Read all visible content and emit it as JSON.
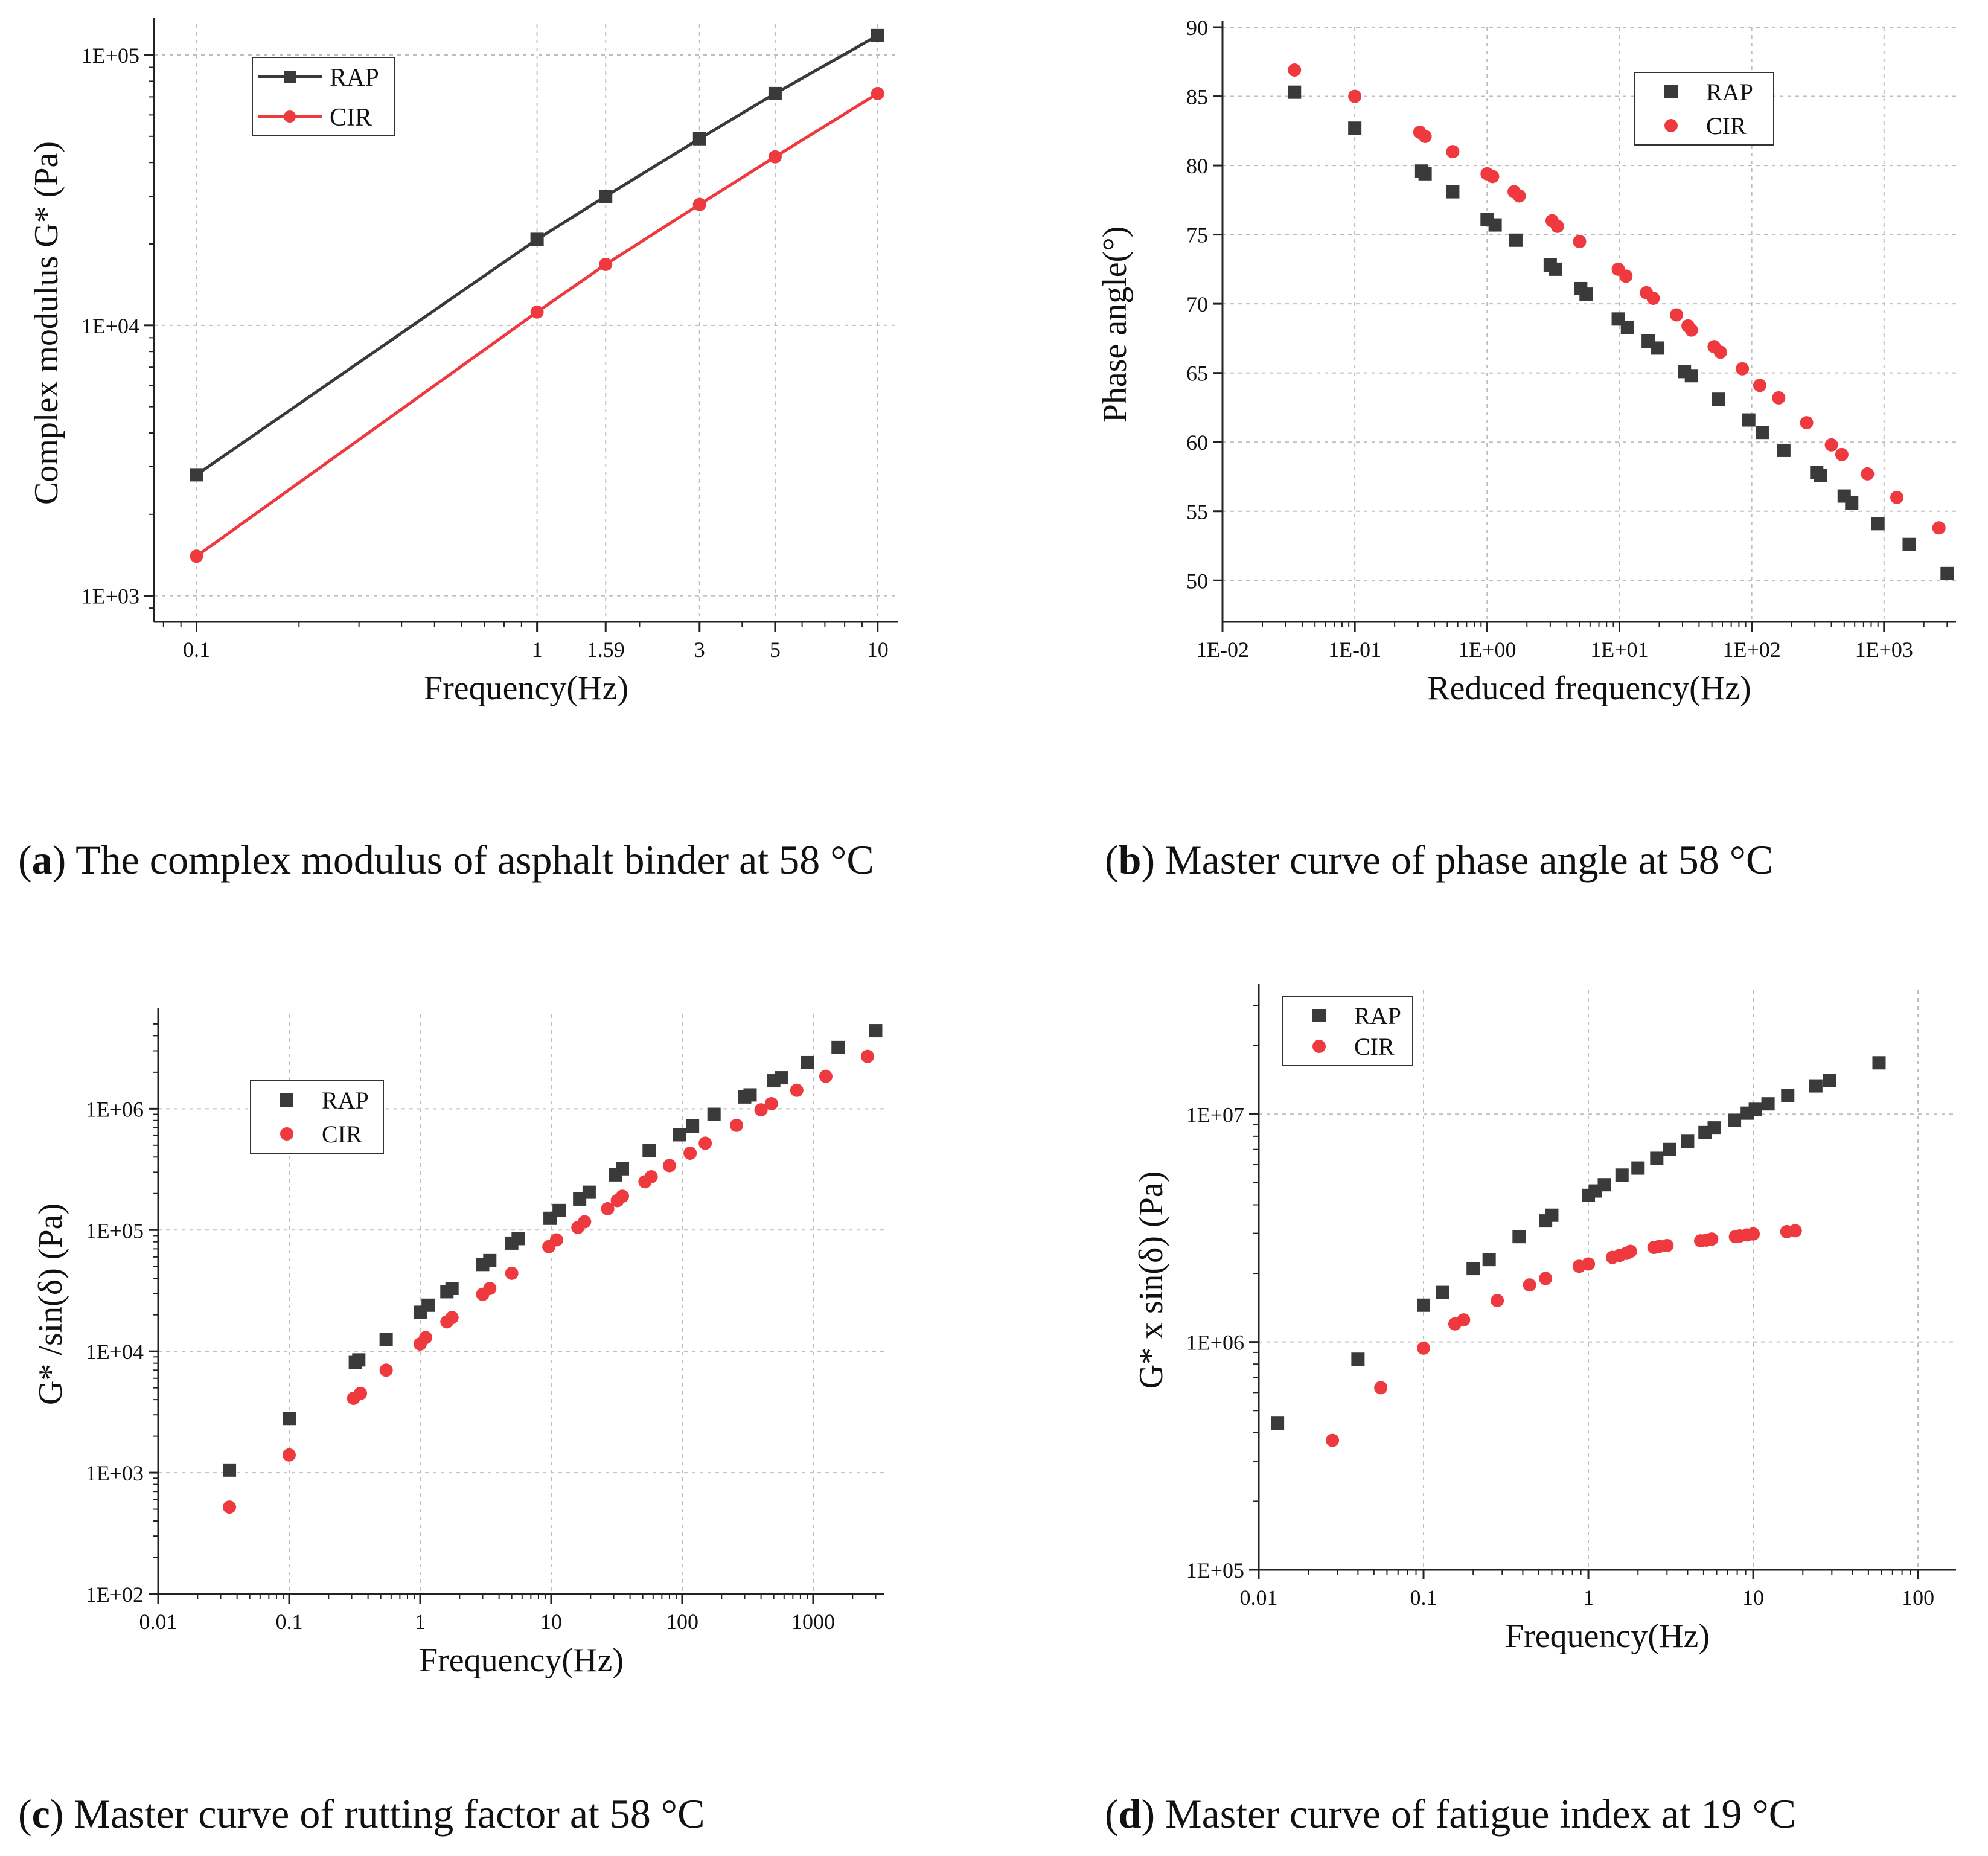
{
  "captions": [
    {
      "letter": "a",
      "text": ") The complex modulus of asphalt binder at 58 °C"
    },
    {
      "letter": "b",
      "text": ") Master curve of phase angle at 58 °C"
    },
    {
      "letter": "c",
      "text": ") Master curve of rutting factor at 58 °C"
    },
    {
      "letter": "d",
      "text": ") Master curve of fatigue index at 19 °C"
    }
  ],
  "colors": {
    "rap": "#3a3a3a",
    "cir": "#ee3a3f",
    "grid": "#bdbdbd",
    "axis": "#222222"
  },
  "chart_data": [
    {
      "id": "a",
      "type": "line",
      "xscale": "log",
      "yscale": "log",
      "xlim": [
        0.075,
        11.5
      ],
      "ylim": [
        800,
        130000
      ],
      "xticks": [
        0.1,
        1,
        1.59,
        3,
        5,
        10
      ],
      "xtick_labels": [
        "0.1",
        "1",
        "1.59",
        "3",
        "5",
        "10"
      ],
      "yticks": [
        1000,
        10000,
        100000
      ],
      "ytick_labels": [
        "1E+03",
        "1E+04",
        "1E+05"
      ],
      "xlabel": "Frequency(Hz)",
      "ylabel": "Complex modulus G* (Pa)",
      "legend_position": "top-left",
      "series": [
        {
          "name": "RAP",
          "marker": "square",
          "color": "#3a3a3a",
          "line": true,
          "x": [
            0.1,
            1,
            1.59,
            3,
            5,
            10
          ],
          "y": [
            2800,
            20800,
            30000,
            49000,
            72000,
            118000
          ]
        },
        {
          "name": "CIR",
          "marker": "circle",
          "color": "#ee3a3f",
          "line": true,
          "x": [
            0.1,
            1,
            1.59,
            3,
            5,
            10
          ],
          "y": [
            1400,
            11200,
            16800,
            28000,
            42000,
            72000
          ]
        }
      ]
    },
    {
      "id": "b",
      "type": "scatter",
      "xscale": "log",
      "yscale": "linear",
      "xlim": [
        0.01,
        3500
      ],
      "ylim": [
        47,
        90
      ],
      "xticks": [
        0.01,
        0.1,
        1,
        10,
        100,
        1000
      ],
      "xtick_labels": [
        "1E-02",
        "1E-01",
        "1E+00",
        "1E+01",
        "1E+02",
        "1E+03"
      ],
      "yticks": [
        50,
        55,
        60,
        65,
        70,
        75,
        80,
        85,
        90
      ],
      "ytick_labels": [
        "50",
        "55",
        "60",
        "65",
        "70",
        "75",
        "80",
        "85",
        "90"
      ],
      "xlabel": "Reduced frequency(Hz)",
      "ylabel": "Phase angle(°)",
      "legend_position": "top-right",
      "series": [
        {
          "name": "RAP",
          "marker": "square",
          "color": "#3a3a3a",
          "line": false,
          "x": [
            0.035,
            0.1,
            0.32,
            0.34,
            0.55,
            1.0,
            1.15,
            1.65,
            3.0,
            3.3,
            5.1,
            5.6,
            9.8,
            11.5,
            16.5,
            19.5,
            31,
            35,
            56,
            95,
            120,
            175,
            310,
            330,
            500,
            570,
            900,
            1550,
            3000
          ],
          "y": [
            85.3,
            82.7,
            79.6,
            79.4,
            78.1,
            76.1,
            75.7,
            74.6,
            72.8,
            72.5,
            71.1,
            70.7,
            68.9,
            68.3,
            67.3,
            66.8,
            65.1,
            64.8,
            63.1,
            61.6,
            60.7,
            59.4,
            57.8,
            57.6,
            56.1,
            55.6,
            54.1,
            52.6,
            50.5
          ]
        },
        {
          "name": "CIR",
          "marker": "circle",
          "color": "#ee3a3f",
          "line": false,
          "x": [
            0.035,
            0.1,
            0.31,
            0.34,
            0.55,
            1.0,
            1.1,
            1.6,
            1.75,
            3.1,
            3.4,
            5.0,
            9.8,
            11.2,
            16,
            18,
            27,
            33,
            35,
            52,
            58,
            85,
            115,
            160,
            260,
            400,
            480,
            750,
            1250,
            2600
          ],
          "y": [
            86.9,
            85.0,
            82.4,
            82.1,
            81.0,
            79.4,
            79.2,
            78.1,
            77.8,
            76.0,
            75.6,
            74.5,
            72.5,
            72.0,
            70.8,
            70.4,
            69.2,
            68.4,
            68.1,
            66.9,
            66.5,
            65.3,
            64.1,
            63.2,
            61.4,
            59.8,
            59.1,
            57.7,
            56.0,
            53.8
          ]
        }
      ]
    },
    {
      "id": "c",
      "type": "scatter",
      "xscale": "log",
      "yscale": "log",
      "xlim": [
        0.01,
        3500
      ],
      "ylim": [
        100,
        6000000
      ],
      "xticks": [
        0.01,
        0.1,
        1,
        10,
        100,
        1000
      ],
      "xtick_labels": [
        "0.01",
        "0.1",
        "1",
        "10",
        "100",
        "1000"
      ],
      "yticks": [
        100,
        1000,
        10000,
        100000,
        1000000
      ],
      "ytick_labels": [
        "1E+02",
        "1E+03",
        "1E+04",
        "1E+05",
        "1E+06"
      ],
      "xlabel": "Frequency(Hz)",
      "ylabel": "G* /sin(δ) (Pa)",
      "legend_position": "upper-left",
      "series": [
        {
          "name": "RAP",
          "marker": "square",
          "color": "#3a3a3a",
          "line": false,
          "x": [
            0.035,
            0.1,
            0.32,
            0.34,
            0.55,
            1.0,
            1.15,
            1.6,
            1.75,
            3.0,
            3.4,
            5.0,
            5.6,
            9.8,
            11.5,
            16.5,
            19.5,
            31,
            35,
            56,
            95,
            120,
            175,
            300,
            330,
            500,
            570,
            900,
            1550,
            3000
          ],
          "y": [
            1050,
            2800,
            8100,
            8500,
            12500,
            21000,
            24000,
            31000,
            33000,
            52000,
            56000,
            78000,
            85000,
            125000,
            145000,
            180000,
            205000,
            285000,
            320000,
            450000,
            610000,
            720000,
            900000,
            1250000,
            1300000,
            1700000,
            1800000,
            2400000,
            3200000,
            4400000
          ]
        },
        {
          "name": "CIR",
          "marker": "circle",
          "color": "#ee3a3f",
          "line": false,
          "x": [
            0.035,
            0.1,
            0.31,
            0.35,
            0.55,
            1.0,
            1.1,
            1.6,
            1.75,
            3.0,
            3.4,
            5.0,
            9.6,
            11,
            16,
            18,
            27,
            32,
            35,
            52,
            58,
            80,
            115,
            150,
            260,
            400,
            480,
            750,
            1250,
            2600
          ],
          "y": [
            520,
            1400,
            4100,
            4500,
            7000,
            11500,
            13000,
            17500,
            19000,
            29500,
            33000,
            44000,
            73000,
            83000,
            105000,
            117000,
            150000,
            175000,
            190000,
            250000,
            275000,
            340000,
            430000,
            520000,
            730000,
            980000,
            1100000,
            1420000,
            1850000,
            2700000
          ]
        }
      ]
    },
    {
      "id": "d",
      "type": "scatter",
      "xscale": "log",
      "yscale": "log",
      "xlim": [
        0.01,
        170
      ],
      "ylim": [
        100000,
        35000000
      ],
      "xticks": [
        0.01,
        0.1,
        1,
        10,
        100
      ],
      "xtick_labels": [
        "0.01",
        "0.1",
        "1",
        "10",
        "100"
      ],
      "yticks": [
        100000,
        1000000,
        10000000
      ],
      "ytick_labels": [
        "1E+05",
        "1E+06",
        "1E+07"
      ],
      "xlabel": "Frequency(Hz)",
      "ylabel": "G* x sin(δ) (Pa)",
      "legend_position": "top-left",
      "series": [
        {
          "name": "RAP",
          "marker": "square",
          "color": "#3a3a3a",
          "line": false,
          "x": [
            0.013,
            0.04,
            0.1,
            0.13,
            0.2,
            0.25,
            0.38,
            0.55,
            0.6,
            1.0,
            1.1,
            1.25,
            1.6,
            2.0,
            2.6,
            3.1,
            4.0,
            5.1,
            5.8,
            7.7,
            9.2,
            10.3,
            12.3,
            16.2,
            24,
            29,
            58
          ],
          "y": [
            440000,
            840000,
            1450000,
            1650000,
            2100000,
            2300000,
            2900000,
            3400000,
            3600000,
            4400000,
            4600000,
            4900000,
            5400000,
            5800000,
            6400000,
            7000000,
            7600000,
            8300000,
            8700000,
            9400000,
            10100000,
            10500000,
            11100000,
            12100000,
            13300000,
            14100000,
            16800000
          ]
        },
        {
          "name": "CIR",
          "marker": "circle",
          "color": "#ee3a3f",
          "line": false,
          "x": [
            0.028,
            0.055,
            0.1,
            0.155,
            0.175,
            0.28,
            0.44,
            0.55,
            0.88,
            1.0,
            1.4,
            1.55,
            1.7,
            1.8,
            2.5,
            2.7,
            3.0,
            4.8,
            5.2,
            5.6,
            7.8,
            8.3,
            9.2,
            10,
            16,
            18
          ],
          "y": [
            370000,
            630000,
            940000,
            1200000,
            1250000,
            1520000,
            1780000,
            1900000,
            2150000,
            2200000,
            2350000,
            2400000,
            2450000,
            2500000,
            2600000,
            2630000,
            2650000,
            2780000,
            2800000,
            2830000,
            2900000,
            2920000,
            2950000,
            2980000,
            3050000,
            3080000
          ]
        }
      ]
    }
  ]
}
